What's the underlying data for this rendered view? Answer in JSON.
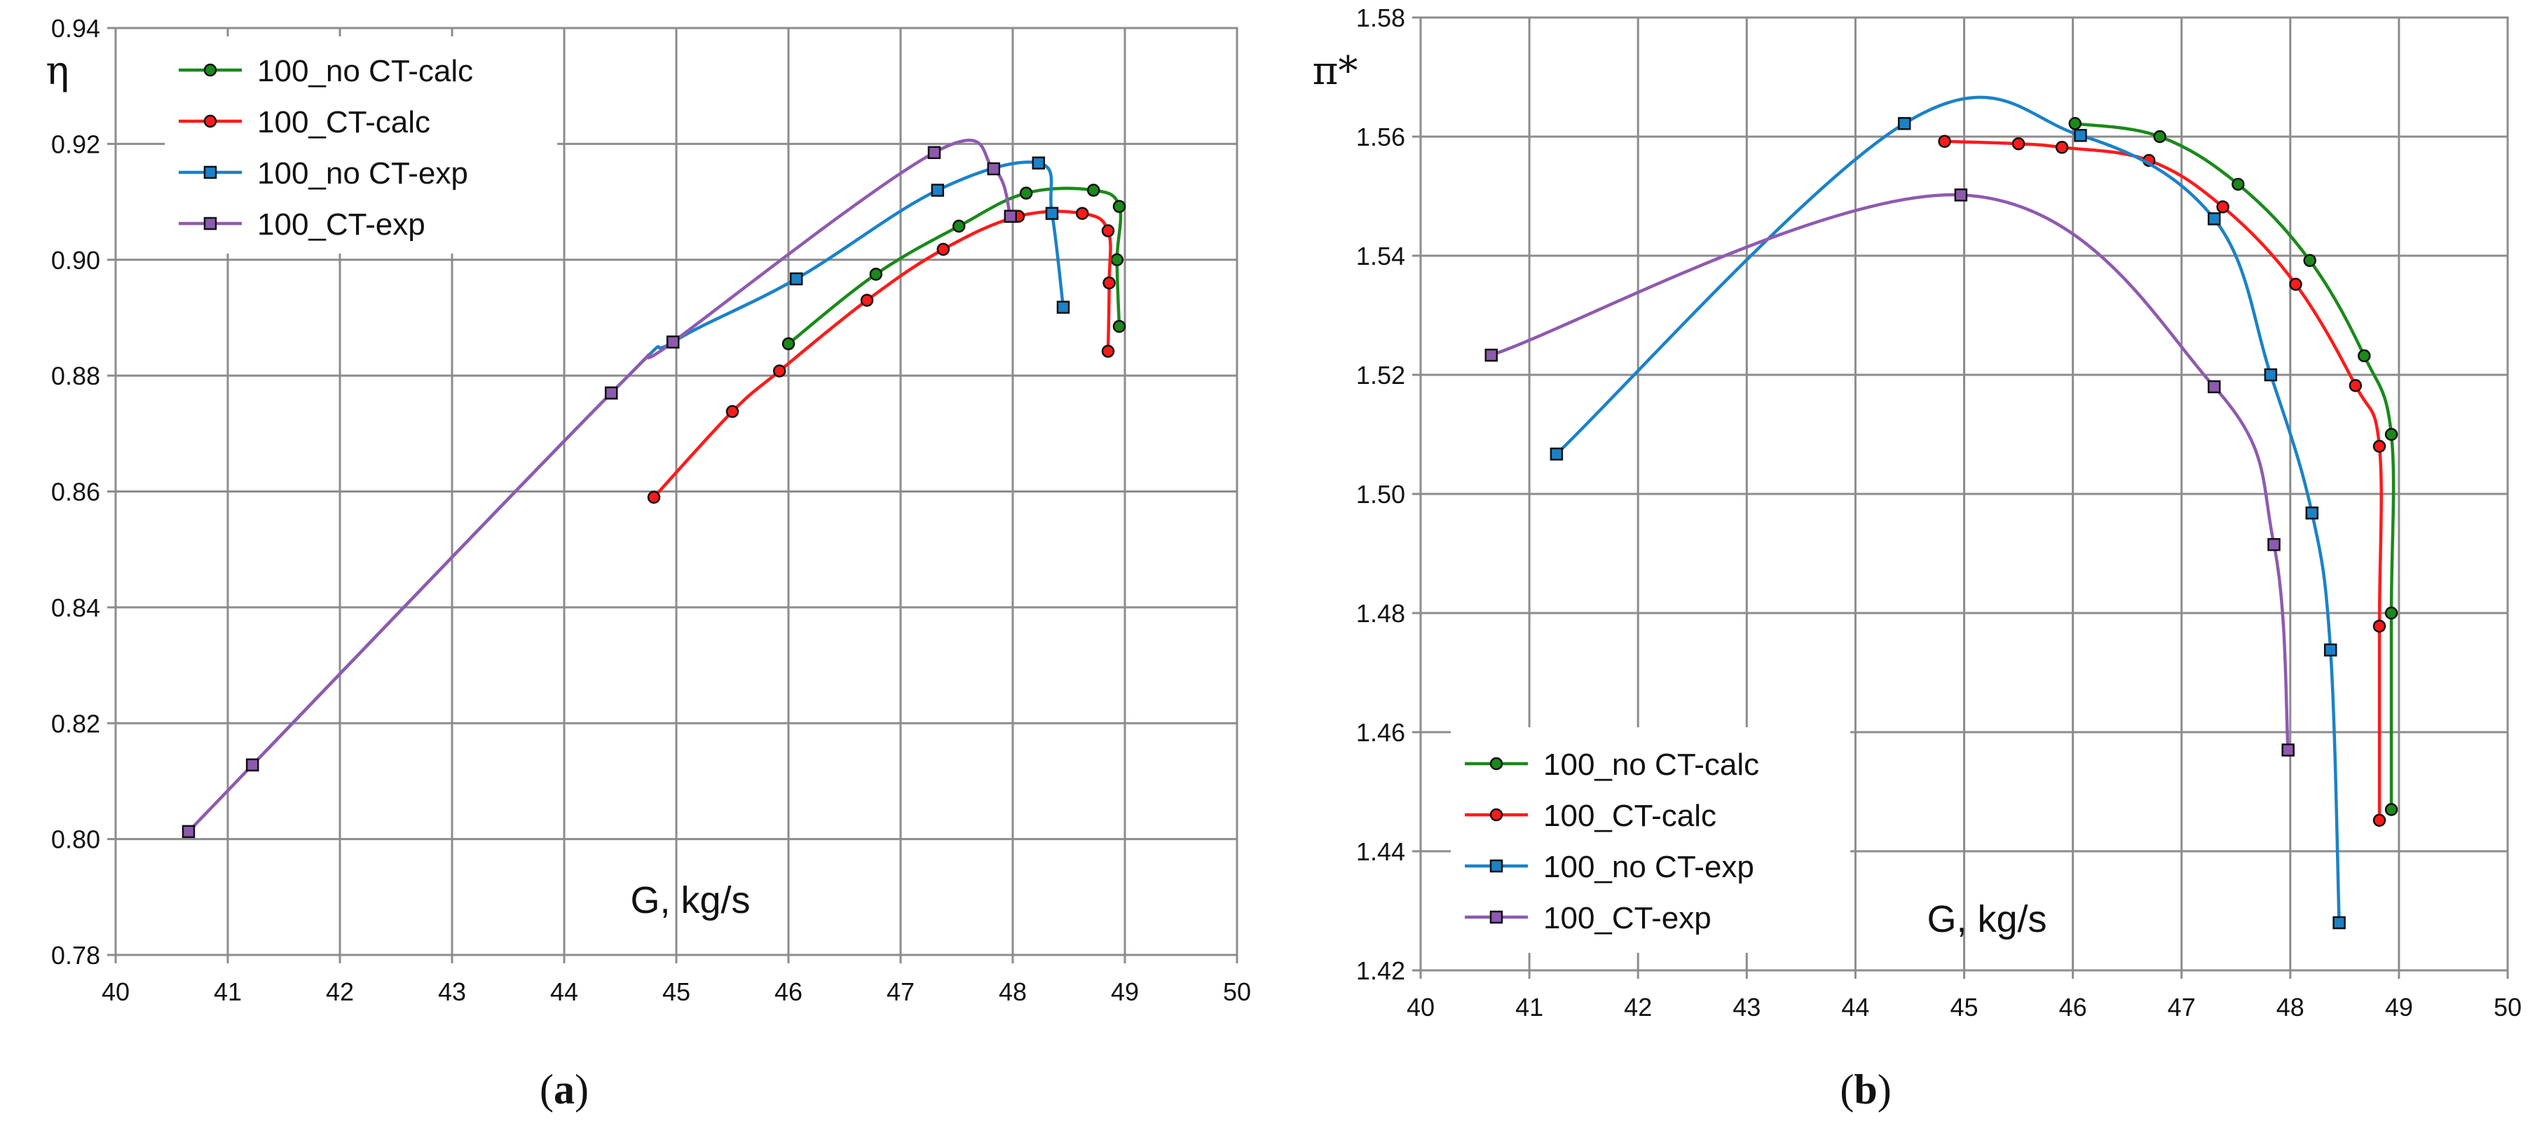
{
  "colors": {
    "100_no CT-calc": "#1a8a1a",
    "100_CT-calc": "#ff1a1a",
    "100_no CT-exp": "#1a82c8",
    "100_CT-exp": "#8e5ab0"
  },
  "chart_data": [
    {
      "type": "line",
      "panel_label": "(a)",
      "caption_parts": [
        "(",
        "a",
        ")"
      ],
      "xlabel": "G, kg/s",
      "ylabel": "η",
      "xlim": [
        40,
        50
      ],
      "ylim": [
        0.78,
        0.94
      ],
      "x_ticks": [
        "40",
        "41",
        "42",
        "43",
        "44",
        "45",
        "46",
        "47",
        "48",
        "49",
        "50"
      ],
      "y_ticks": [
        "0.78",
        "0.80",
        "0.82",
        "0.84",
        "0.86",
        "0.88",
        "0.90",
        "0.92",
        "0.94"
      ],
      "grid": true,
      "legend_position": "top-left",
      "series": [
        {
          "name": "100_no CT-calc",
          "marker": "circle",
          "x": [
            46.0,
            46.78,
            47.52,
            48.12,
            48.72,
            48.95,
            48.93,
            48.95
          ],
          "y": [
            0.8855,
            0.8975,
            0.9058,
            0.9115,
            0.912,
            0.9092,
            0.9,
            0.8885
          ]
        },
        {
          "name": "100_CT-calc",
          "marker": "circle",
          "x": [
            44.8,
            45.5,
            45.92,
            46.7,
            47.38,
            48.05,
            48.62,
            48.85,
            48.86,
            48.85
          ],
          "y": [
            0.859,
            0.8738,
            0.8808,
            0.893,
            0.9018,
            0.9075,
            0.908,
            0.905,
            0.896,
            0.8842
          ]
        },
        {
          "name": "100_no CT-exp",
          "marker": "square",
          "x": [
            41.22,
            44.42,
            44.97,
            46.07,
            47.33,
            48.23,
            48.35,
            48.45
          ],
          "y": [
            0.8128,
            0.877,
            0.8858,
            0.8967,
            0.912,
            0.9167,
            0.908,
            0.8918
          ]
        },
        {
          "name": "100_CT-exp",
          "marker": "square",
          "x": [
            40.65,
            41.22,
            44.42,
            44.97,
            47.3,
            47.83,
            47.98
          ],
          "y": [
            0.8013,
            0.8128,
            0.877,
            0.8858,
            0.9185,
            0.9157,
            0.9075
          ]
        }
      ]
    },
    {
      "type": "line",
      "panel_label": "(b)",
      "caption_parts": [
        "(",
        "b",
        ")"
      ],
      "xlabel": "G, kg/s",
      "ylabel": "π*",
      "xlim": [
        40,
        50
      ],
      "ylim": [
        1.42,
        1.58
      ],
      "x_ticks": [
        "40",
        "41",
        "42",
        "43",
        "44",
        "45",
        "46",
        "47",
        "48",
        "49",
        "50"
      ],
      "y_ticks": [
        "1.42",
        "1.44",
        "1.46",
        "1.48",
        "1.50",
        "1.52",
        "1.54",
        "1.56",
        "1.58"
      ],
      "grid": true,
      "legend_position": "bottom-left",
      "series": [
        {
          "name": "100_no CT-calc",
          "marker": "circle",
          "x": [
            46.02,
            46.8,
            47.52,
            48.18,
            48.68,
            48.93,
            48.93,
            48.93
          ],
          "y": [
            1.5622,
            1.56,
            1.552,
            1.5392,
            1.5232,
            1.51,
            1.48,
            1.447
          ]
        },
        {
          "name": "100_CT-calc",
          "marker": "circle",
          "x": [
            44.82,
            45.5,
            45.9,
            46.7,
            47.38,
            48.05,
            48.6,
            48.82,
            48.82,
            48.82
          ],
          "y": [
            1.5592,
            1.5588,
            1.5582,
            1.556,
            1.5482,
            1.5352,
            1.5182,
            1.508,
            1.4778,
            1.4452
          ]
        },
        {
          "name": "100_no CT-exp",
          "marker": "square",
          "x": [
            41.25,
            44.45,
            46.07,
            47.3,
            47.82,
            48.2,
            48.37,
            48.45
          ],
          "y": [
            1.5067,
            1.5622,
            1.5602,
            1.5462,
            1.52,
            1.4968,
            1.4738,
            1.428
          ]
        },
        {
          "name": "100_CT-exp",
          "marker": "square",
          "x": [
            40.65,
            44.97,
            47.3,
            47.85,
            47.98
          ],
          "y": [
            1.5233,
            1.5502,
            1.518,
            1.4915,
            1.457
          ]
        }
      ]
    }
  ]
}
